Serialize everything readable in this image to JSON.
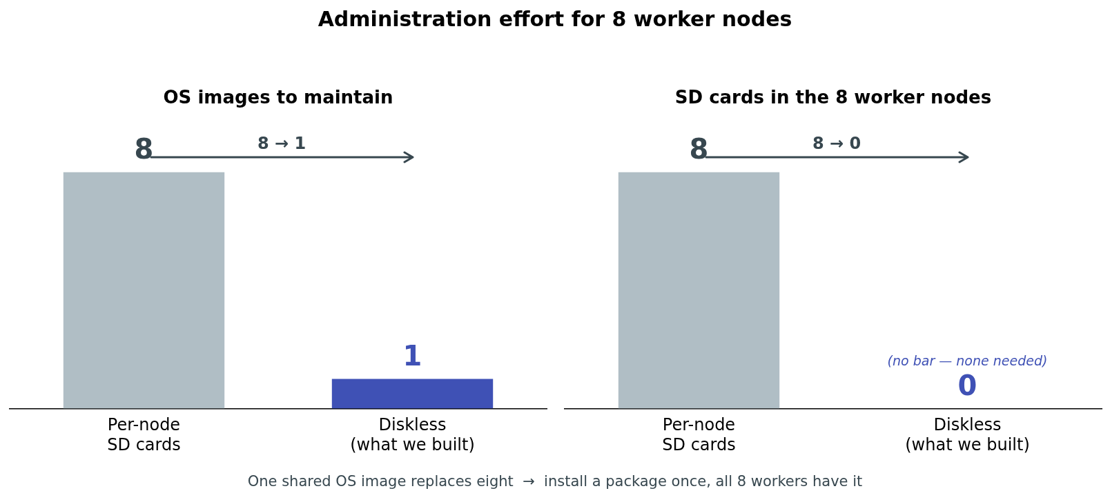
{
  "chart_data": [
    {
      "type": "other",
      "title": "Administration effort for 8 worker nodes",
      "annotations": [
        "One shared OS image replaces eight  →  install a package once, all 8 workers have it"
      ]
    },
    {
      "type": "bar",
      "title": "OS images to maintain",
      "categories": [
        "Per-node\nSD cards",
        "Diskless\n(what we built)"
      ],
      "values": [
        8,
        1
      ],
      "colors": [
        "#b0bec5",
        "#3f51b5"
      ],
      "data_labels": true,
      "grid": false,
      "legend": false,
      "annotations": [
        "8 → 1"
      ]
    },
    {
      "type": "bar",
      "title": "SD cards in the 8 worker nodes",
      "categories": [
        "Per-node\nSD cards",
        "Diskless\n(what we built)"
      ],
      "values": [
        8,
        0
      ],
      "colors": [
        "#b0bec5",
        "#3f51b5"
      ],
      "data_labels": true,
      "grid": false,
      "legend": false,
      "annotations": [
        "8 → 0",
        "(no bar — none needed)"
      ]
    }
  ]
}
